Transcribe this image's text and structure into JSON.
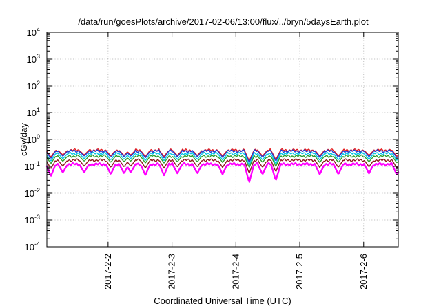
{
  "chart_data": {
    "type": "line",
    "title": "/data/run/goesPlots/archive/2017-02-06/13:00/flux/../bryn/5daysEarth.plot",
    "xlabel": "Coordinated Universal Time (UTC)",
    "ylabel": "cGy/day",
    "y_scale": "log",
    "ylim": [
      0.0001,
      10000
    ],
    "y_ticks": [
      {
        "base": "10",
        "exp": "-4"
      },
      {
        "base": "10",
        "exp": "-3"
      },
      {
        "base": "10",
        "exp": "-2"
      },
      {
        "base": "10",
        "exp": "-1"
      },
      {
        "base": "10",
        "exp": "0"
      },
      {
        "base": "10",
        "exp": "1"
      },
      {
        "base": "10",
        "exp": "2"
      },
      {
        "base": "10",
        "exp": "3"
      },
      {
        "base": "10",
        "exp": "4"
      }
    ],
    "xlim": [
      "2017-02-01T01:00",
      "2017-02-06T13:00"
    ],
    "x_ticks": [
      {
        "label": "2017-2-2",
        "t": "2017-02-02T00:00"
      },
      {
        "label": "2017-2-3",
        "t": "2017-02-03T00:00"
      },
      {
        "label": "2017-2-4",
        "t": "2017-02-04T00:00"
      },
      {
        "label": "2017-2-5",
        "t": "2017-02-05T00:00"
      },
      {
        "label": "2017-2-6",
        "t": "2017-02-06T00:00"
      }
    ],
    "grid": true,
    "legend": "none",
    "series": [
      {
        "color": "#e41a1c",
        "base": 0.4,
        "dip_min": 0.16
      },
      {
        "color": "#1f3fd6",
        "base": 0.37,
        "dip_min": 0.14
      },
      {
        "color": "#00c8e6",
        "base": 0.3,
        "dip_min": 0.11
      },
      {
        "color": "#2ca02c",
        "base": 0.24,
        "dip_min": 0.09
      },
      {
        "color": "#8b1a1a",
        "base": 0.17,
        "dip_min": 0.055
      },
      {
        "color": "#ff00ff",
        "base": 0.12,
        "dip_min": 0.025
      }
    ],
    "dips": [
      {
        "t": "2017-02-01T02:30",
        "depth": 0.65
      },
      {
        "t": "2017-02-01T07:00",
        "depth": 0.45
      },
      {
        "t": "2017-02-01T15:00",
        "depth": 0.45
      },
      {
        "t": "2017-02-02T01:00",
        "depth": 0.55
      },
      {
        "t": "2017-02-02T06:00",
        "depth": 0.5
      },
      {
        "t": "2017-02-02T08:30",
        "depth": 0.45
      },
      {
        "t": "2017-02-02T14:00",
        "depth": 0.6
      },
      {
        "t": "2017-02-02T21:00",
        "depth": 0.6
      },
      {
        "t": "2017-02-03T02:00",
        "depth": 0.5
      },
      {
        "t": "2017-02-03T09:30",
        "depth": 0.5
      },
      {
        "t": "2017-02-03T19:00",
        "depth": 0.55
      },
      {
        "t": "2017-02-04T05:00",
        "depth": 1.0
      },
      {
        "t": "2017-02-04T10:00",
        "depth": 0.55
      },
      {
        "t": "2017-02-04T15:00",
        "depth": 0.9
      },
      {
        "t": "2017-02-05T07:30",
        "depth": 0.55
      },
      {
        "t": "2017-02-05T14:30",
        "depth": 0.55
      },
      {
        "t": "2017-02-06T02:00",
        "depth": 0.5
      },
      {
        "t": "2017-02-06T12:30",
        "depth": 0.6
      }
    ]
  }
}
